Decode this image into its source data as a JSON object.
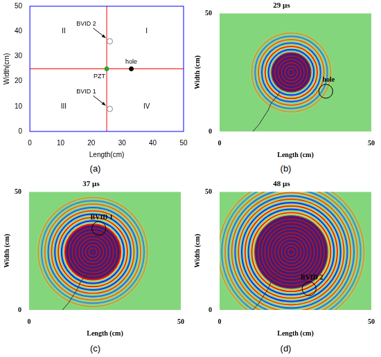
{
  "chart_data": [
    {
      "panel": "(a)",
      "type": "scatter",
      "xlabel": "Length(cm)",
      "ylabel": "Width(cm)",
      "xlim": [
        0,
        50
      ],
      "ylim": [
        0,
        50
      ],
      "xticks": [
        0,
        10,
        20,
        30,
        40,
        50
      ],
      "yticks": [
        0,
        10,
        20,
        30,
        40,
        50
      ],
      "grid": false,
      "series": [
        {
          "name": "PZT",
          "x": [
            25
          ],
          "y": [
            25
          ],
          "color": "#2ca02c",
          "marker": "filled"
        },
        {
          "name": "hole",
          "x": [
            33
          ],
          "y": [
            25
          ],
          "color": "#000000",
          "marker": "filled"
        },
        {
          "name": "BVID 1",
          "x": [
            26
          ],
          "y": [
            9
          ],
          "color": "#808080",
          "marker": "open"
        },
        {
          "name": "BVID 2",
          "x": [
            26
          ],
          "y": [
            36
          ],
          "color": "#808080",
          "marker": "open"
        }
      ],
      "reference_lines": {
        "x": [
          25
        ],
        "y": [
          25
        ],
        "color": "#ff0000"
      },
      "annotations": [
        {
          "text": "I",
          "x": 38,
          "y": 40
        },
        {
          "text": "II",
          "x": 11,
          "y": 40
        },
        {
          "text": "III",
          "x": 11,
          "y": 10
        },
        {
          "text": "IV",
          "x": 38,
          "y": 10
        }
      ]
    },
    {
      "panel": "(b)",
      "type": "wavefield",
      "title": "29 µs",
      "xlabel": "Length (cm)",
      "ylabel": "Width (cm)",
      "xlim": [
        0,
        50
      ],
      "ylim": [
        0,
        50
      ],
      "xticks": [
        0,
        50
      ],
      "yticks": [
        0,
        50
      ],
      "grid": false,
      "source": {
        "x": 23.6,
        "y": 25
      },
      "wavefront_radius": 13,
      "marked": {
        "name": "hole",
        "x": 35,
        "y": 17
      }
    },
    {
      "panel": "(c)",
      "type": "wavefield",
      "title": "37 µs",
      "xlabel": "Length (cm)",
      "ylabel": "Width (cm)",
      "xlim": [
        0,
        50
      ],
      "ylim": [
        0,
        50
      ],
      "xticks": [
        0,
        50
      ],
      "yticks": [
        0,
        50
      ],
      "grid": false,
      "source": {
        "x": 21,
        "y": 24.5
      },
      "wavefront_radius": 18,
      "marked": {
        "name": "BVID 1",
        "x": 23,
        "y": 34.5
      }
    },
    {
      "panel": "(d)",
      "type": "wavefield",
      "title": "48 µs",
      "xlabel": "Length (cm)",
      "ylabel": "Width (cm)",
      "xlim": [
        0,
        50
      ],
      "ylim": [
        0,
        50
      ],
      "xticks": [
        0,
        50
      ],
      "yticks": [
        0,
        50
      ],
      "grid": false,
      "source": {
        "x": 23.6,
        "y": 24.5
      },
      "wavefront_radius": 24,
      "marked": {
        "name": "BVID 2",
        "x": 29.5,
        "y": 9
      }
    }
  ]
}
